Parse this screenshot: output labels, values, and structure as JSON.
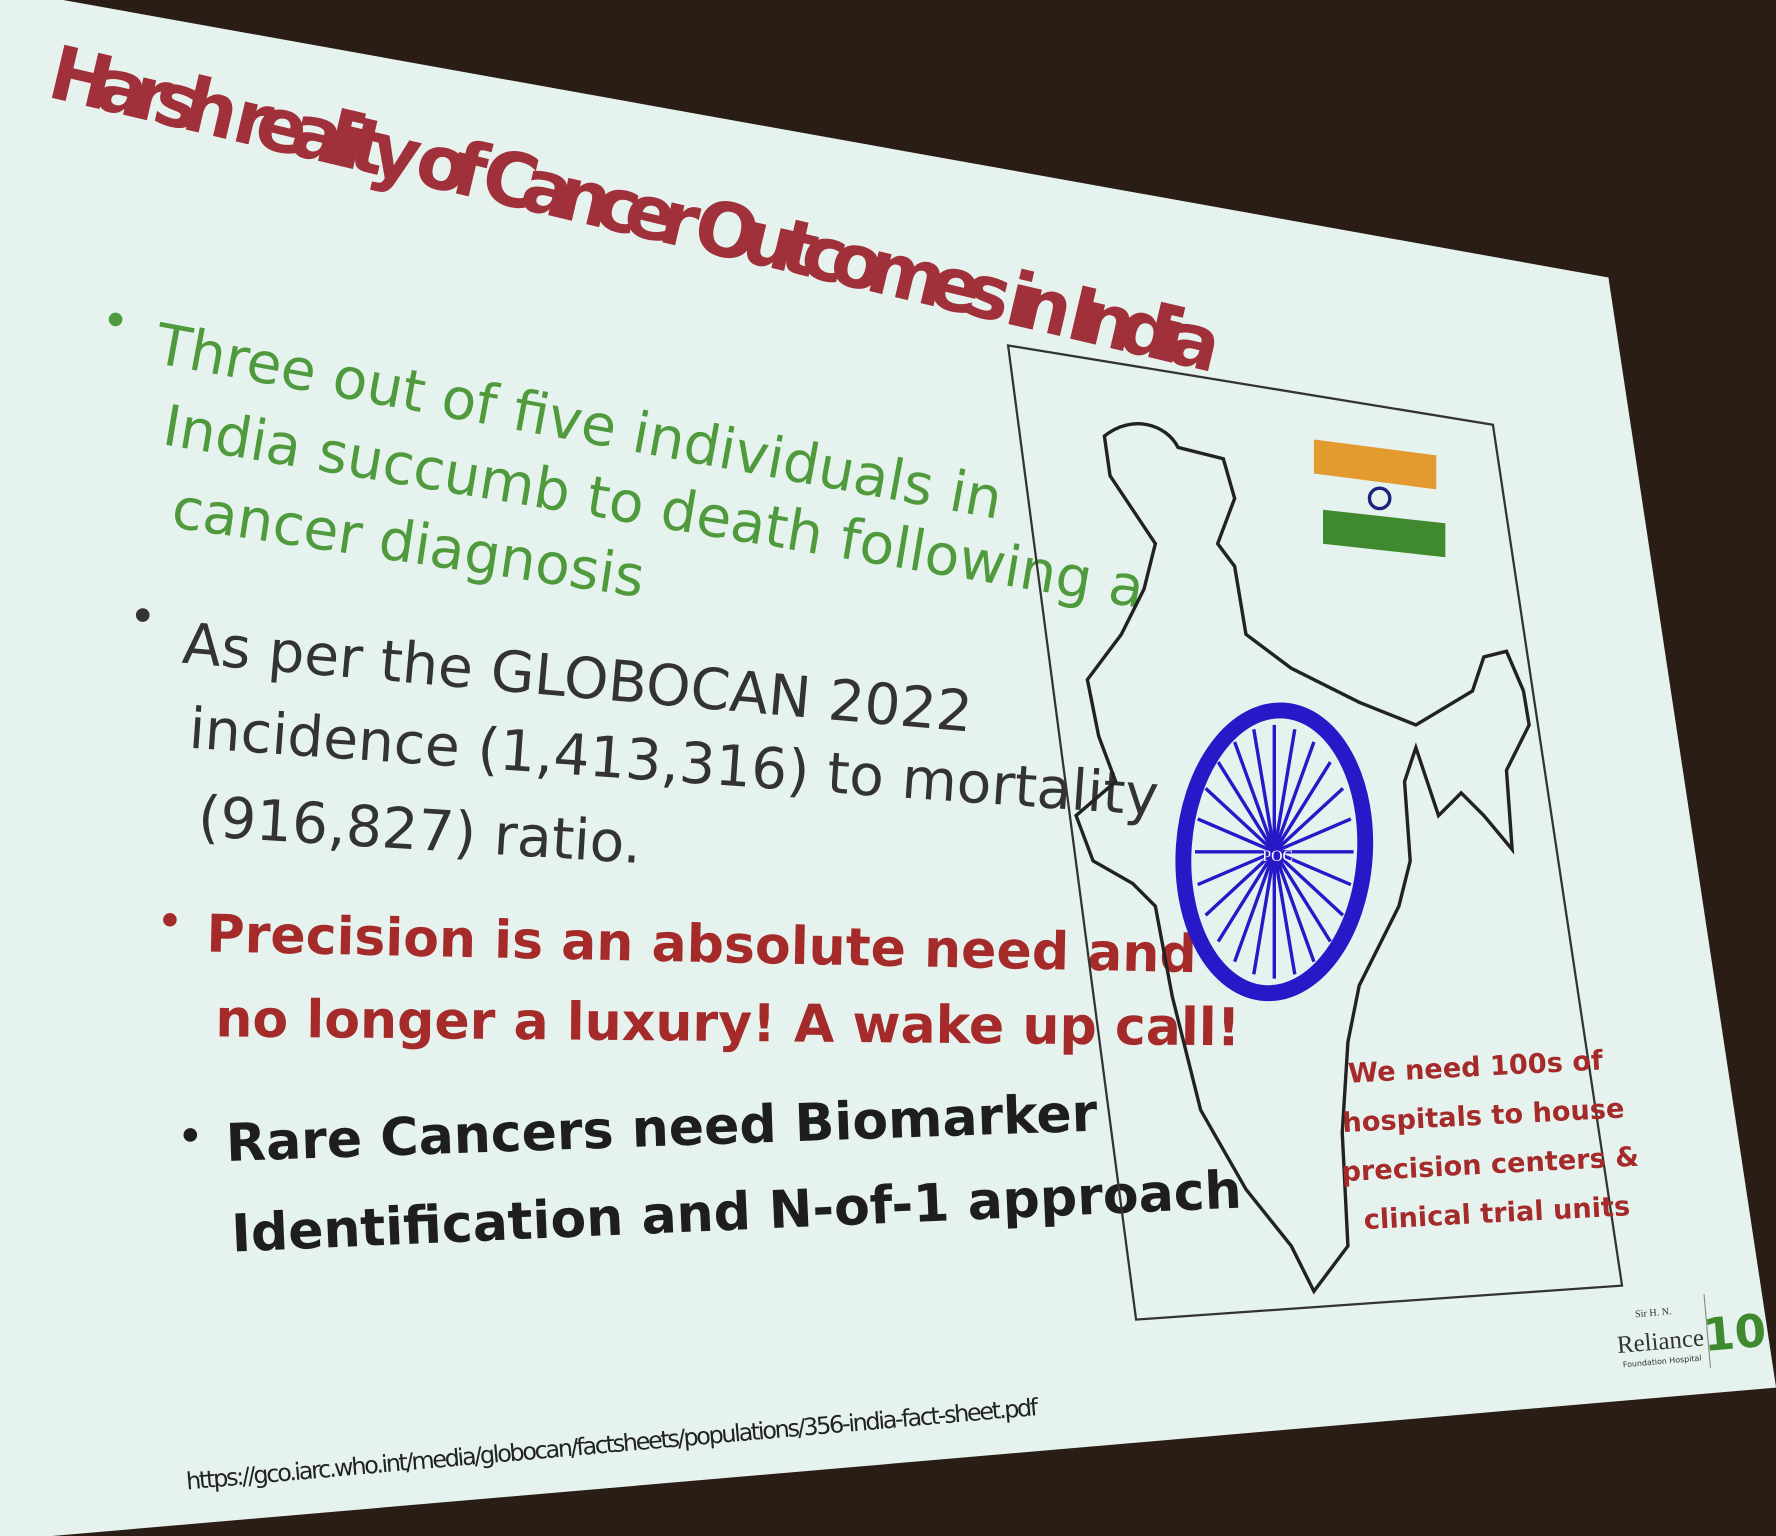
{
  "title": "Harsh reality of Cancer Outcomes in India",
  "bullets": [
    {
      "lines": [
        "Three out of five individuals in",
        "India succumb to death following a",
        "cancer diagnosis"
      ]
    },
    {
      "lines": [
        "As per the GLOBOCAN 2022",
        "incidence (1,413,316) to mortality",
        "(916,827) ratio."
      ]
    },
    {
      "lines": [
        "Precision is an absolute need and",
        "no longer a luxury! A wake up call!"
      ]
    },
    {
      "lines": [
        "Rare Cancers need Biomarker",
        "Identification and N-of-1 approach"
      ]
    }
  ],
  "map": {
    "center_label": "POC",
    "note": [
      "We need 100s of",
      "hospitals to house",
      "precision centers &",
      "clinical trial units"
    ]
  },
  "logo": {
    "top": "Sir H. N.",
    "name": "Reliance",
    "sub": "Foundation Hospital",
    "badge": "10"
  },
  "source_url": "https://gco.iarc.who.int/media/globocan/factsheets/populations/356-india-fact-sheet.pdf"
}
